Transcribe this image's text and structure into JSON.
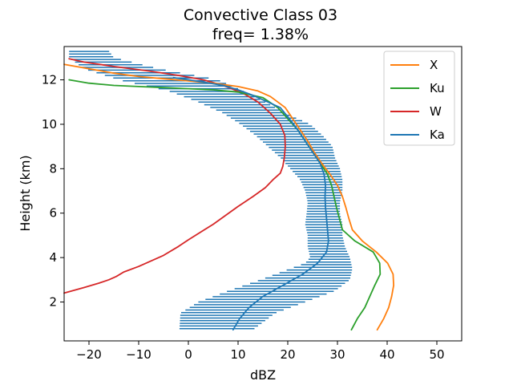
{
  "chart_data": {
    "type": "line",
    "title": "Convective Class 03",
    "subtitle": "freq=  1.38%",
    "xlabel": "dBZ",
    "ylabel": "Height (km)",
    "xlim": [
      -25,
      55
    ],
    "ylim": [
      0.25,
      13.5
    ],
    "xticks": [
      -20,
      -10,
      0,
      10,
      20,
      30,
      40,
      50
    ],
    "yticks": [
      2,
      4,
      6,
      8,
      10,
      12
    ],
    "legend_position": "upper right",
    "grid": false,
    "colors": {
      "X": "#ff7f0e",
      "Ku": "#2ca02c",
      "W": "#d62728",
      "Ka": "#1f77b4",
      "spread": "#1f77b4"
    },
    "series": [
      {
        "name": "X",
        "x": [
          38,
          39.3,
          40.3,
          40.9,
          41.3,
          41.2,
          40.1,
          37.8,
          35,
          33,
          32.3,
          31.7,
          31,
          30,
          28.5,
          26.8,
          25.3,
          24,
          22.5,
          21,
          19.5,
          18,
          16.5,
          14,
          10,
          5,
          0,
          -5,
          -10,
          -15,
          -20,
          -25
        ],
        "y": [
          0.75,
          1.25,
          1.75,
          2.25,
          2.75,
          3.25,
          3.75,
          4.25,
          4.75,
          5.25,
          5.75,
          6.25,
          6.75,
          7.25,
          7.75,
          8.25,
          8.75,
          9.25,
          9.75,
          10.25,
          10.75,
          11.0,
          11.25,
          11.5,
          11.7,
          11.85,
          11.95,
          12.05,
          12.15,
          12.3,
          12.5,
          12.7
        ]
      },
      {
        "name": "Ku",
        "x": [
          32.8,
          34,
          35.5,
          36.5,
          37.5,
          38.6,
          38.5,
          37.2,
          33.5,
          31,
          30.4,
          29.8,
          29.3,
          28.8,
          28,
          26.5,
          25,
          23.5,
          22,
          20,
          18,
          15,
          10,
          5,
          0,
          -5,
          -10,
          -15,
          -20,
          -24
        ],
        "y": [
          0.75,
          1.25,
          1.75,
          2.25,
          2.75,
          3.25,
          3.75,
          4.25,
          4.75,
          5.25,
          5.75,
          6.25,
          6.75,
          7.25,
          7.75,
          8.25,
          8.75,
          9.25,
          9.75,
          10.25,
          10.75,
          11.2,
          11.45,
          11.55,
          11.6,
          11.65,
          11.7,
          11.75,
          11.85,
          12.0
        ]
      },
      {
        "name": "W",
        "x": [
          -25,
          -21,
          -18,
          -16,
          -14.5,
          -13,
          -10,
          -5,
          -2,
          0,
          5,
          10,
          13,
          15.5,
          17,
          18.5,
          19,
          19.3,
          19.5,
          19.4,
          18.5,
          16.5,
          14,
          11,
          7,
          3,
          -2,
          -8,
          -15,
          -21,
          -24
        ],
        "y": [
          2.4,
          2.65,
          2.85,
          3.0,
          3.15,
          3.35,
          3.6,
          4.1,
          4.5,
          4.8,
          5.5,
          6.3,
          6.75,
          7.15,
          7.5,
          7.8,
          8.1,
          8.5,
          9.0,
          9.5,
          10.0,
          10.5,
          11.0,
          11.4,
          11.75,
          12.0,
          12.2,
          12.4,
          12.6,
          12.8,
          12.95
        ]
      },
      {
        "name": "Ka",
        "x": [
          9,
          10.3,
          12.2,
          15,
          19,
          23,
          26,
          27.8,
          28.2,
          28,
          27.8,
          27.6,
          27.5,
          27.6,
          27.3,
          26.5,
          25,
          23.5,
          22,
          20.3,
          18.5,
          16,
          13,
          10,
          7,
          3,
          0,
          -3
        ],
        "y": [
          0.75,
          1.25,
          1.75,
          2.25,
          2.75,
          3.25,
          3.75,
          4.25,
          4.75,
          5.25,
          5.75,
          6.25,
          6.75,
          7.25,
          7.75,
          8.25,
          8.75,
          9.25,
          9.75,
          10.25,
          10.75,
          11.0,
          11.3,
          11.55,
          11.75,
          11.9,
          12.0,
          12.1
        ]
      }
    ],
    "spread_bars": {
      "description": "Ka range bars",
      "left_edge": [
        [
          0.75,
          -1.8
        ],
        [
          1.5,
          -1.6
        ],
        [
          2.0,
          2.0
        ],
        [
          2.5,
          8.0
        ],
        [
          3.0,
          14.5
        ],
        [
          3.5,
          20.5
        ],
        [
          3.75,
          23.5
        ],
        [
          4.0,
          24.5
        ],
        [
          4.5,
          24.0
        ],
        [
          5.0,
          24.0
        ],
        [
          5.5,
          23.5
        ],
        [
          6.0,
          23.8
        ],
        [
          6.5,
          24.0
        ],
        [
          7.0,
          23.5
        ],
        [
          7.5,
          22.5
        ],
        [
          8.0,
          20.5
        ],
        [
          8.5,
          18.5
        ],
        [
          9.0,
          16.0
        ],
        [
          9.5,
          13.5
        ],
        [
          10.0,
          10.5
        ],
        [
          10.5,
          7.0
        ],
        [
          11.0,
          2.0
        ],
        [
          11.5,
          -4.0
        ],
        [
          12.0,
          -14.0
        ],
        [
          12.5,
          -21.0
        ],
        [
          13.0,
          -24.0
        ]
      ],
      "right_edge": [
        [
          0.75,
          13.0
        ],
        [
          1.5,
          17.5
        ],
        [
          2.0,
          23.5
        ],
        [
          2.5,
          29.5
        ],
        [
          3.0,
          32.5
        ],
        [
          3.5,
          33.0
        ],
        [
          4.0,
          32.5
        ],
        [
          4.5,
          31.5
        ],
        [
          5.0,
          31.0
        ],
        [
          5.5,
          31.0
        ],
        [
          6.0,
          30.5
        ],
        [
          6.5,
          30.5
        ],
        [
          7.0,
          31.0
        ],
        [
          7.5,
          31.0
        ],
        [
          8.0,
          30.5
        ],
        [
          8.5,
          29.5
        ],
        [
          9.0,
          29.0
        ],
        [
          9.5,
          27.0
        ],
        [
          10.0,
          24.5
        ],
        [
          10.5,
          19.5
        ],
        [
          11.0,
          15.5
        ],
        [
          11.5,
          11.0
        ],
        [
          12.0,
          6.0
        ],
        [
          12.5,
          -6.0
        ],
        [
          13.0,
          -15.0
        ],
        [
          13.3,
          -16.0
        ]
      ],
      "y_start": 0.8,
      "y_end": 13.35,
      "dy": 0.12
    }
  }
}
